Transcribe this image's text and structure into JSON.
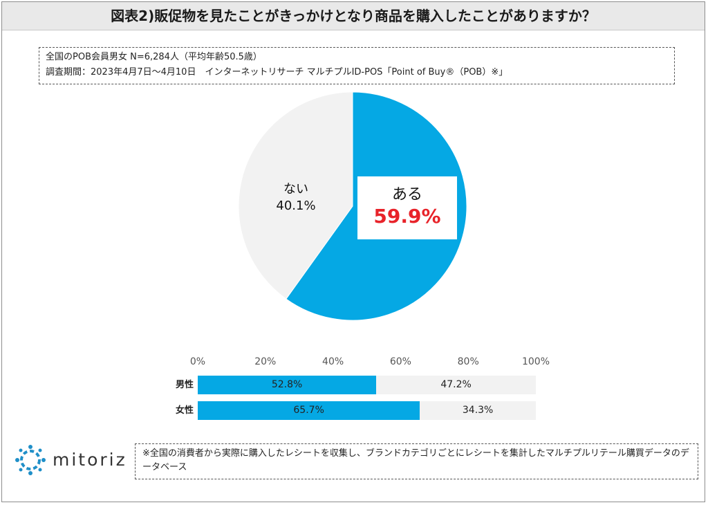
{
  "title": "図表2)販促物を見たことがきっかけとなり商品を購入したことがありますか？",
  "info": {
    "line1": "全国のPOB会員男女 N=6,284人（平均年齢50.5歳）",
    "line2": "調査期間：2023年4月7日～4月10日　インターネットリサーチ マルチプルID-POS「Point of Buy®（POB）※」"
  },
  "footnote": "※全国の消費者から実際に購入したレシートを収集し、ブランドカテゴリごとにレシートを集計したマルチプルリテール購買データのデータベース",
  "logo": {
    "text": "mitoriz",
    "icon": "dotted-ring-logo-icon"
  },
  "colors": {
    "accent": "#05a8e4",
    "no": "#f2f2f2",
    "highlight": "#e8232a"
  },
  "chart_data": [
    {
      "type": "pie",
      "labels": [
        "ある",
        "ない"
      ],
      "values": [
        59.9,
        40.1
      ],
      "value_labels": [
        "59.9%",
        "40.1%"
      ],
      "colors": [
        "#05a8e4",
        "#f2f2f2"
      ],
      "start": "12 o'clock",
      "direction": "clockwise"
    },
    {
      "type": "bar",
      "orientation": "horizontal",
      "stacked": true,
      "categories": [
        "男性",
        "女性"
      ],
      "series": [
        {
          "values": [
            52.8,
            65.7
          ],
          "labels": [
            "52.8%",
            "65.7%"
          ],
          "color": "#05a8e4"
        },
        {
          "values": [
            47.2,
            34.3
          ],
          "labels": [
            "47.2%",
            "34.3%"
          ],
          "color": "#f2f2f2"
        }
      ],
      "xlim": [
        0,
        100
      ],
      "xticks": [
        "0%",
        "20%",
        "40%",
        "60%",
        "80%",
        "100%"
      ],
      "grid": false
    }
  ]
}
